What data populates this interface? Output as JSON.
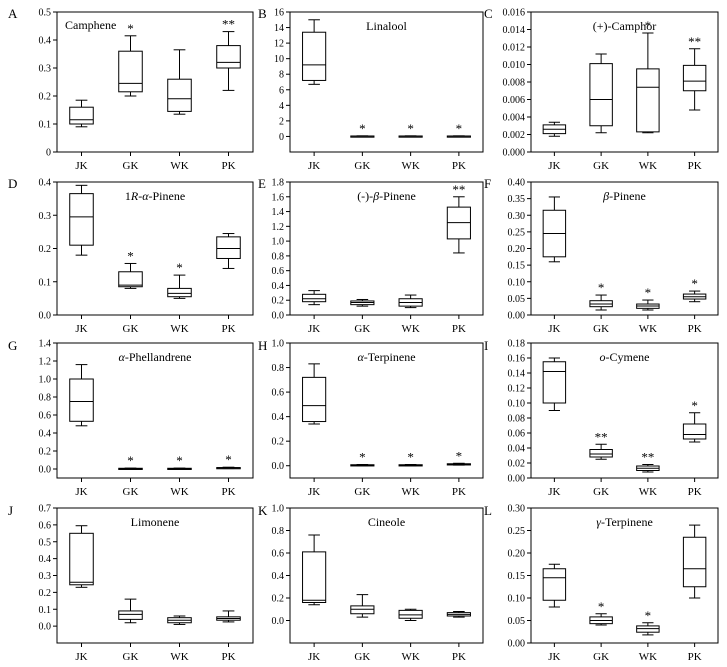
{
  "chart_data": [
    {
      "panel": "A",
      "type": "box",
      "title": "Camphene",
      "title_align": "left",
      "categories": [
        "JK",
        "GK",
        "WK",
        "PK"
      ],
      "ylim": [
        0,
        0.5
      ],
      "yticks": [
        "0",
        "0.1",
        "0.2",
        "0.3",
        "0.4",
        "0.5"
      ],
      "ytick_values": [
        0,
        0.1,
        0.2,
        0.3,
        0.4,
        0.5
      ],
      "boxes": [
        {
          "min": 0.09,
          "q1": 0.1,
          "median": 0.115,
          "q3": 0.16,
          "max": 0.185
        },
        {
          "min": 0.2,
          "q1": 0.215,
          "median": 0.245,
          "q3": 0.36,
          "max": 0.415
        },
        {
          "min": 0.135,
          "q1": 0.145,
          "median": 0.19,
          "q3": 0.26,
          "max": 0.365
        },
        {
          "min": 0.22,
          "q1": 0.3,
          "median": 0.32,
          "q3": 0.38,
          "max": 0.43
        }
      ],
      "annotations": [
        "",
        "*",
        "",
        "**"
      ]
    },
    {
      "panel": "B",
      "type": "box",
      "title": "Linalool",
      "title_align": "center",
      "categories": [
        "JK",
        "GK",
        "WK",
        "PK"
      ],
      "ylim": [
        -2,
        16
      ],
      "yticks": [
        "0",
        "2",
        "4",
        "6",
        "8",
        "10",
        "12",
        "14",
        "16"
      ],
      "ytick_values": [
        0,
        2,
        4,
        6,
        8,
        10,
        12,
        14,
        16
      ],
      "boxes": [
        {
          "min": 6.7,
          "q1": 7.2,
          "median": 9.2,
          "q3": 13.4,
          "max": 15.0
        },
        {
          "min": 0.0,
          "q1": 0.0,
          "median": 0.03,
          "q3": 0.06,
          "max": 0.08
        },
        {
          "min": 0.0,
          "q1": 0.0,
          "median": 0.03,
          "q3": 0.06,
          "max": 0.08
        },
        {
          "min": 0.0,
          "q1": 0.0,
          "median": 0.03,
          "q3": 0.06,
          "max": 0.08
        }
      ],
      "annotations": [
        "",
        "*",
        "*",
        "*"
      ]
    },
    {
      "panel": "C",
      "type": "box",
      "title": "(+)-Camphor",
      "title_align": "center",
      "categories": [
        "JK",
        "GK",
        "WK",
        "PK"
      ],
      "ylim": [
        0,
        0.016
      ],
      "yticks": [
        "0.000",
        "0.002",
        "0.004",
        "0.006",
        "0.008",
        "0.010",
        "0.012",
        "0.014",
        "0.016"
      ],
      "ytick_values": [
        0,
        0.002,
        0.004,
        0.006,
        0.008,
        0.01,
        0.012,
        0.014,
        0.016
      ],
      "boxes": [
        {
          "min": 0.0018,
          "q1": 0.0021,
          "median": 0.0026,
          "q3": 0.0031,
          "max": 0.0034
        },
        {
          "min": 0.0022,
          "q1": 0.003,
          "median": 0.006,
          "q3": 0.0101,
          "max": 0.0112
        },
        {
          "min": 0.0022,
          "q1": 0.0023,
          "median": 0.0074,
          "q3": 0.0095,
          "max": 0.0136
        },
        {
          "min": 0.0048,
          "q1": 0.007,
          "median": 0.0081,
          "q3": 0.0099,
          "max": 0.0118
        }
      ],
      "annotations": [
        "",
        "",
        "*",
        "**"
      ]
    },
    {
      "panel": "D",
      "type": "box",
      "title": "1R-α-Pinene",
      "title_align": "center",
      "categories": [
        "JK",
        "GK",
        "WK",
        "PK"
      ],
      "ylim": [
        0,
        0.4
      ],
      "yticks": [
        "0.0",
        "0.1",
        "0.2",
        "0.3",
        "0.4"
      ],
      "ytick_values": [
        0,
        0.1,
        0.2,
        0.3,
        0.4
      ],
      "boxes": [
        {
          "min": 0.18,
          "q1": 0.21,
          "median": 0.295,
          "q3": 0.365,
          "max": 0.39
        },
        {
          "min": 0.08,
          "q1": 0.085,
          "median": 0.09,
          "q3": 0.13,
          "max": 0.155
        },
        {
          "min": 0.05,
          "q1": 0.055,
          "median": 0.065,
          "q3": 0.08,
          "max": 0.12
        },
        {
          "min": 0.14,
          "q1": 0.17,
          "median": 0.2,
          "q3": 0.235,
          "max": 0.245
        }
      ],
      "annotations": [
        "",
        "*",
        "*",
        ""
      ]
    },
    {
      "panel": "E",
      "type": "box",
      "title": "(-)-β-Pinene",
      "title_align": "center",
      "categories": [
        "JK",
        "GK",
        "WK",
        "PK"
      ],
      "ylim": [
        0,
        1.8
      ],
      "yticks": [
        "0.0",
        "0.2",
        "0.4",
        "0.6",
        "0.8",
        "1.0",
        "1.2",
        "1.4",
        "1.6",
        "1.8"
      ],
      "ytick_values": [
        0,
        0.2,
        0.4,
        0.6,
        0.8,
        1.0,
        1.2,
        1.4,
        1.6,
        1.8
      ],
      "boxes": [
        {
          "min": 0.14,
          "q1": 0.18,
          "median": 0.22,
          "q3": 0.28,
          "max": 0.33
        },
        {
          "min": 0.12,
          "q1": 0.14,
          "median": 0.17,
          "q3": 0.19,
          "max": 0.21
        },
        {
          "min": 0.1,
          "q1": 0.12,
          "median": 0.17,
          "q3": 0.22,
          "max": 0.27
        },
        {
          "min": 0.84,
          "q1": 1.03,
          "median": 1.25,
          "q3": 1.46,
          "max": 1.6
        }
      ],
      "annotations": [
        "",
        "",
        "",
        "**"
      ]
    },
    {
      "panel": "F",
      "type": "box",
      "title": "β-Pinene",
      "title_align": "center",
      "categories": [
        "JK",
        "GK",
        "WK",
        "PK"
      ],
      "ylim": [
        0,
        0.4
      ],
      "yticks": [
        "0.00",
        "0.05",
        "0.10",
        "0.15",
        "0.20",
        "0.25",
        "0.30",
        "0.35",
        "0.40"
      ],
      "ytick_values": [
        0,
        0.05,
        0.1,
        0.15,
        0.2,
        0.25,
        0.3,
        0.35,
        0.4
      ],
      "boxes": [
        {
          "min": 0.16,
          "q1": 0.175,
          "median": 0.245,
          "q3": 0.315,
          "max": 0.355
        },
        {
          "min": 0.015,
          "q1": 0.025,
          "median": 0.033,
          "q3": 0.043,
          "max": 0.06
        },
        {
          "min": 0.015,
          "q1": 0.02,
          "median": 0.027,
          "q3": 0.033,
          "max": 0.045
        },
        {
          "min": 0.04,
          "q1": 0.048,
          "median": 0.055,
          "q3": 0.063,
          "max": 0.072
        }
      ],
      "annotations": [
        "",
        "*",
        "*",
        "*"
      ]
    },
    {
      "panel": "G",
      "type": "box",
      "title": "α-Phellandrene",
      "title_align": "center",
      "categories": [
        "JK",
        "GK",
        "WK",
        "PK"
      ],
      "ylim": [
        -0.1,
        1.4
      ],
      "yticks": [
        "0.0",
        "0.2",
        "0.4",
        "0.6",
        "0.8",
        "1.0",
        "1.2",
        "1.4"
      ],
      "ytick_values": [
        0,
        0.2,
        0.4,
        0.6,
        0.8,
        1.0,
        1.2,
        1.4
      ],
      "boxes": [
        {
          "min": 0.48,
          "q1": 0.53,
          "median": 0.75,
          "q3": 1.0,
          "max": 1.16
        },
        {
          "min": 0.0,
          "q1": 0.002,
          "median": 0.005,
          "q3": 0.008,
          "max": 0.01
        },
        {
          "min": 0.0,
          "q1": 0.002,
          "median": 0.005,
          "q3": 0.008,
          "max": 0.01
        },
        {
          "min": 0.005,
          "q1": 0.008,
          "median": 0.012,
          "q3": 0.016,
          "max": 0.02
        }
      ],
      "annotations": [
        "",
        "*",
        "*",
        "*"
      ]
    },
    {
      "panel": "H",
      "type": "box",
      "title": "α-Terpinene",
      "title_align": "center",
      "categories": [
        "JK",
        "GK",
        "WK",
        "PK"
      ],
      "ylim": [
        -0.1,
        1.0
      ],
      "yticks": [
        "0.0",
        "0.2",
        "0.4",
        "0.6",
        "0.8",
        "1.0"
      ],
      "ytick_values": [
        0,
        0.2,
        0.4,
        0.6,
        0.8,
        1.0
      ],
      "boxes": [
        {
          "min": 0.34,
          "q1": 0.36,
          "median": 0.49,
          "q3": 0.72,
          "max": 0.83
        },
        {
          "min": 0.0,
          "q1": 0.002,
          "median": 0.005,
          "q3": 0.008,
          "max": 0.01
        },
        {
          "min": 0.0,
          "q1": 0.002,
          "median": 0.005,
          "q3": 0.008,
          "max": 0.01
        },
        {
          "min": 0.005,
          "q1": 0.008,
          "median": 0.012,
          "q3": 0.016,
          "max": 0.02
        }
      ],
      "annotations": [
        "",
        "*",
        "*",
        "*"
      ]
    },
    {
      "panel": "I",
      "type": "box",
      "title": "o-Cymene",
      "title_align": "center",
      "categories": [
        "JK",
        "GK",
        "WK",
        "PK"
      ],
      "ylim": [
        0,
        0.18
      ],
      "yticks": [
        "0.00",
        "0.02",
        "0.04",
        "0.06",
        "0.08",
        "0.10",
        "0.12",
        "0.14",
        "0.16",
        "0.18"
      ],
      "ytick_values": [
        0,
        0.02,
        0.04,
        0.06,
        0.08,
        0.1,
        0.12,
        0.14,
        0.16,
        0.18
      ],
      "boxes": [
        {
          "min": 0.09,
          "q1": 0.1,
          "median": 0.142,
          "q3": 0.155,
          "max": 0.16
        },
        {
          "min": 0.025,
          "q1": 0.028,
          "median": 0.032,
          "q3": 0.038,
          "max": 0.045
        },
        {
          "min": 0.008,
          "q1": 0.01,
          "median": 0.013,
          "q3": 0.016,
          "max": 0.018
        },
        {
          "min": 0.048,
          "q1": 0.052,
          "median": 0.058,
          "q3": 0.072,
          "max": 0.087
        }
      ],
      "annotations": [
        "",
        "**",
        "**",
        "*"
      ]
    },
    {
      "panel": "J",
      "type": "box",
      "title": "Limonene",
      "title_align": "center",
      "categories": [
        "JK",
        "GK",
        "WK",
        "PK"
      ],
      "ylim": [
        -0.1,
        0.7
      ],
      "yticks": [
        "0.0",
        "0.1",
        "0.2",
        "0.3",
        "0.4",
        "0.5",
        "0.6",
        "0.7"
      ],
      "ytick_values": [
        0,
        0.1,
        0.2,
        0.3,
        0.4,
        0.5,
        0.6,
        0.7
      ],
      "boxes": [
        {
          "min": 0.23,
          "q1": 0.245,
          "median": 0.26,
          "q3": 0.55,
          "max": 0.595
        },
        {
          "min": 0.02,
          "q1": 0.04,
          "median": 0.07,
          "q3": 0.09,
          "max": 0.16
        },
        {
          "min": 0.01,
          "q1": 0.02,
          "median": 0.035,
          "q3": 0.05,
          "max": 0.06
        },
        {
          "min": 0.025,
          "q1": 0.035,
          "median": 0.045,
          "q3": 0.055,
          "max": 0.09
        }
      ],
      "annotations": [
        "",
        "",
        "",
        ""
      ]
    },
    {
      "panel": "K",
      "type": "box",
      "title": "Cineole",
      "title_align": "center",
      "categories": [
        "JK",
        "GK",
        "WK",
        "PK"
      ],
      "ylim": [
        -0.2,
        1.0
      ],
      "yticks": [
        "0.0",
        "0.2",
        "0.4",
        "0.6",
        "0.8",
        "1.0"
      ],
      "ytick_values": [
        0,
        0.2,
        0.4,
        0.6,
        0.8,
        1.0
      ],
      "boxes": [
        {
          "min": 0.14,
          "q1": 0.16,
          "median": 0.18,
          "q3": 0.61,
          "max": 0.76
        },
        {
          "min": 0.03,
          "q1": 0.06,
          "median": 0.1,
          "q3": 0.13,
          "max": 0.23
        },
        {
          "min": 0.0,
          "q1": 0.02,
          "median": 0.05,
          "q3": 0.09,
          "max": 0.1
        },
        {
          "min": 0.03,
          "q1": 0.04,
          "median": 0.055,
          "q3": 0.07,
          "max": 0.08
        }
      ],
      "annotations": [
        "",
        "",
        "",
        ""
      ]
    },
    {
      "panel": "L",
      "type": "box",
      "title": "γ-Terpinene",
      "title_align": "center",
      "categories": [
        "JK",
        "GK",
        "WK",
        "PK"
      ],
      "ylim": [
        0,
        0.3
      ],
      "yticks": [
        "0.00",
        "0.05",
        "0.10",
        "0.15",
        "0.20",
        "0.25",
        "0.30"
      ],
      "ytick_values": [
        0,
        0.05,
        0.1,
        0.15,
        0.2,
        0.25,
        0.3
      ],
      "boxes": [
        {
          "min": 0.08,
          "q1": 0.095,
          "median": 0.145,
          "q3": 0.165,
          "max": 0.175
        },
        {
          "min": 0.04,
          "q1": 0.043,
          "median": 0.05,
          "q3": 0.058,
          "max": 0.065
        },
        {
          "min": 0.018,
          "q1": 0.024,
          "median": 0.032,
          "q3": 0.038,
          "max": 0.045
        },
        {
          "min": 0.1,
          "q1": 0.125,
          "median": 0.165,
          "q3": 0.235,
          "max": 0.262
        }
      ],
      "annotations": [
        "",
        "*",
        "*",
        ""
      ]
    }
  ],
  "colors": {
    "line": "#000000",
    "box_fill": "#ffffff"
  }
}
